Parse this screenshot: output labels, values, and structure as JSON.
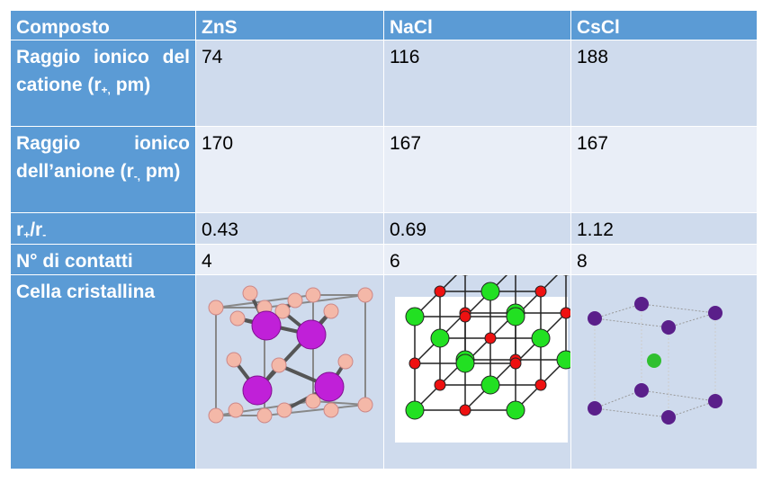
{
  "table": {
    "header": [
      "Composto",
      "ZnS",
      "NaCl",
      "CsCl"
    ],
    "rows": [
      {
        "label": [
          "Raggio ionico del catione (r",
          "+,",
          " pm)"
        ],
        "values": [
          74,
          116,
          188
        ]
      },
      {
        "label": [
          "Raggio ionico dell’anione (r",
          "-,",
          " pm)"
        ],
        "values": [
          170,
          167,
          167
        ]
      },
      {
        "label": [
          "r",
          "+",
          "/r",
          "-"
        ],
        "values": [
          0.43,
          0.69,
          1.12
        ]
      },
      {
        "label": [
          "N° di contatti"
        ],
        "values": [
          4,
          6,
          8
        ]
      },
      {
        "label": [
          "Cella cristallina"
        ]
      }
    ]
  }
}
